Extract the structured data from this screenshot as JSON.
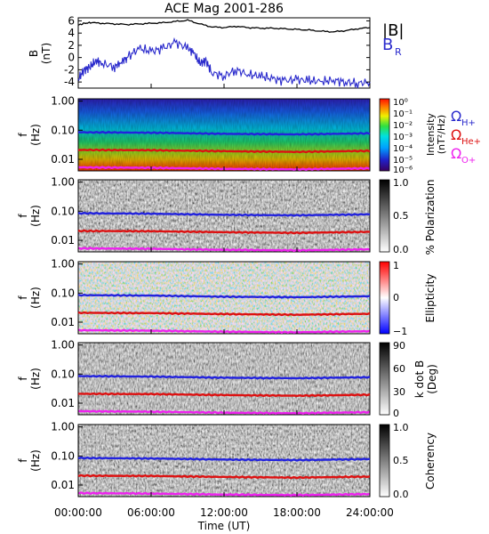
{
  "chart_data": {
    "type": "line",
    "title": "ACE Mag 2001-286",
    "xlabel": "Time (UT)",
    "x_ticks": [
      "00:00:00",
      "06:00:00",
      "12:00:00",
      "18:00:00",
      "24:00:00"
    ],
    "x_range_hours": [
      0,
      24
    ],
    "panels": [
      {
        "id": "field",
        "type": "line",
        "ylabel": "B",
        "yunit": "(nT)",
        "ylim": [
          -5,
          6.5
        ],
        "y_ticks": [
          "6",
          "4",
          "2",
          "0",
          "-2",
          "-4"
        ],
        "y_tick_values": [
          6,
          4,
          2,
          0,
          -2,
          -4
        ],
        "legend": [
          {
            "label": "|B|",
            "color": "#000000"
          },
          {
            "label": "B",
            "sub": "R",
            "color": "#2a2acc"
          }
        ],
        "series": [
          {
            "name": "|B|",
            "color": "#000000",
            "x": [
              0,
              0.5,
              1,
              2,
              3,
              4,
              5,
              6,
              7,
              8,
              9,
              10,
              11,
              12,
              13,
              14,
              15,
              16,
              17,
              18,
              19,
              20,
              21,
              22,
              23,
              24
            ],
            "values": [
              5.3,
              5.6,
              5.7,
              5.6,
              5.5,
              5.4,
              5.5,
              5.6,
              5.7,
              5.9,
              6.1,
              5.5,
              5.0,
              4.9,
              5.1,
              4.9,
              4.8,
              4.8,
              4.7,
              4.6,
              4.5,
              4.3,
              4.2,
              4.4,
              4.7,
              4.9
            ]
          },
          {
            "name": "B_R",
            "color": "#2a2acc",
            "x": [
              0,
              0.5,
              1,
              1.5,
              2,
              3,
              3.5,
              4,
              5,
              6,
              7,
              8,
              9,
              9.5,
              10,
              10.5,
              11,
              12,
              13,
              14,
              15,
              16,
              17,
              18,
              19,
              20,
              21,
              22,
              23,
              24
            ],
            "values": [
              -3.5,
              -2.0,
              -1.5,
              -0.5,
              -1.0,
              -1.5,
              -0.8,
              0.0,
              1.5,
              1.0,
              1.5,
              2.5,
              1.5,
              0.8,
              -1.0,
              -0.5,
              -2.5,
              -3.0,
              -2.0,
              -2.8,
              -3.0,
              -3.5,
              -3.8,
              -3.6,
              -3.8,
              -3.9,
              -3.7,
              -4.0,
              -4.2,
              -4.0
            ]
          }
        ]
      },
      {
        "id": "intensity",
        "type": "heatmap",
        "ylabel": "f",
        "yunit": "(Hz)",
        "ylog": true,
        "ylim": [
          0.004,
          1.2
        ],
        "y_ticks": [
          "1.00",
          "0.10",
          "0.01"
        ],
        "y_tick_values": [
          1,
          0.1,
          0.01
        ],
        "colorbar": {
          "label": "Intensity",
          "unit": "(nT²/Hz)",
          "ticks": [
            "10⁰",
            "10⁻¹",
            "10⁻²",
            "10⁻³",
            "10⁻⁴",
            "10⁻⁵",
            "10⁻⁶"
          ]
        },
        "legend": [
          {
            "label": "Ω",
            "sub": "H+",
            "color": "#2a2acc"
          },
          {
            "label": "Ω",
            "sub": "He+",
            "color": "#dd1111"
          },
          {
            "label": "Ω",
            "sub": "O+",
            "color": "#ee22ee"
          }
        ]
      },
      {
        "id": "polarization",
        "type": "heatmap",
        "ylabel": "f",
        "yunit": "(Hz)",
        "ylog": true,
        "ylim": [
          0.004,
          1.2
        ],
        "y_ticks": [
          "1.00",
          "0.10",
          "0.01"
        ],
        "y_tick_values": [
          1,
          0.1,
          0.01
        ],
        "colorbar": {
          "label": "% Polarization",
          "ticks": [
            "1.0",
            "0.5",
            "0.0"
          ]
        }
      },
      {
        "id": "ellipticity",
        "type": "heatmap",
        "ylabel": "f",
        "yunit": "(Hz)",
        "ylog": true,
        "ylim": [
          0.004,
          1.2
        ],
        "y_ticks": [
          "1.00",
          "0.10",
          "0.01"
        ],
        "y_tick_values": [
          1,
          0.1,
          0.01
        ],
        "colorbar": {
          "label": "Ellipticity",
          "ticks": [
            "1",
            "0",
            "−1"
          ]
        }
      },
      {
        "id": "kdotb",
        "type": "heatmap",
        "ylabel": "f",
        "yunit": "(Hz)",
        "ylog": true,
        "ylim": [
          0.004,
          1.2
        ],
        "y_ticks": [
          "1.00",
          "0.10",
          "0.01"
        ],
        "y_tick_values": [
          1,
          0.1,
          0.01
        ],
        "colorbar": {
          "label": "k dot B",
          "unit": "(Deg)",
          "ticks": [
            "90",
            "60",
            "30",
            "0"
          ]
        }
      },
      {
        "id": "coherency",
        "type": "heatmap",
        "ylabel": "f",
        "yunit": "(Hz)",
        "ylog": true,
        "ylim": [
          0.004,
          1.2
        ],
        "y_ticks": [
          "1.00",
          "0.10",
          "0.01"
        ],
        "y_tick_values": [
          1,
          0.1,
          0.01
        ],
        "colorbar": {
          "label": "Coherency",
          "ticks": [
            "1.0",
            "0.5",
            "0.0"
          ]
        }
      }
    ],
    "gyrofrequency_series": [
      {
        "name": "ΩH+",
        "color": "#2222dd",
        "x": [
          0,
          6,
          12,
          18,
          24
        ],
        "values": [
          0.085,
          0.082,
          0.075,
          0.072,
          0.078
        ]
      },
      {
        "name": "ΩHe+",
        "color": "#dd1111",
        "x": [
          0,
          6,
          12,
          18,
          24
        ],
        "values": [
          0.021,
          0.0205,
          0.019,
          0.018,
          0.0195
        ]
      },
      {
        "name": "ΩO+",
        "color": "#ee22ee",
        "x": [
          0,
          6,
          12,
          18,
          24
        ],
        "values": [
          0.0053,
          0.0051,
          0.0047,
          0.0045,
          0.0049
        ]
      }
    ]
  }
}
